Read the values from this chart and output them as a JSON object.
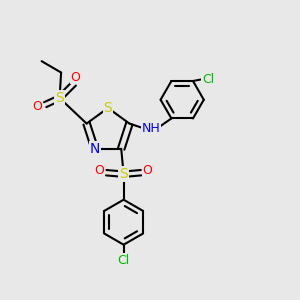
{
  "background_color": "#e8e8e8",
  "bond_color": "#000000",
  "bond_width": 1.5,
  "colors": {
    "C": "#000000",
    "N": "#0000ff",
    "S": "#cccc00",
    "O": "#ff0000",
    "Cl": "#00bb00",
    "H": "#00bb00"
  },
  "font_size": 9,
  "fig_width": 3.0,
  "fig_height": 3.0,
  "dpi": 100
}
